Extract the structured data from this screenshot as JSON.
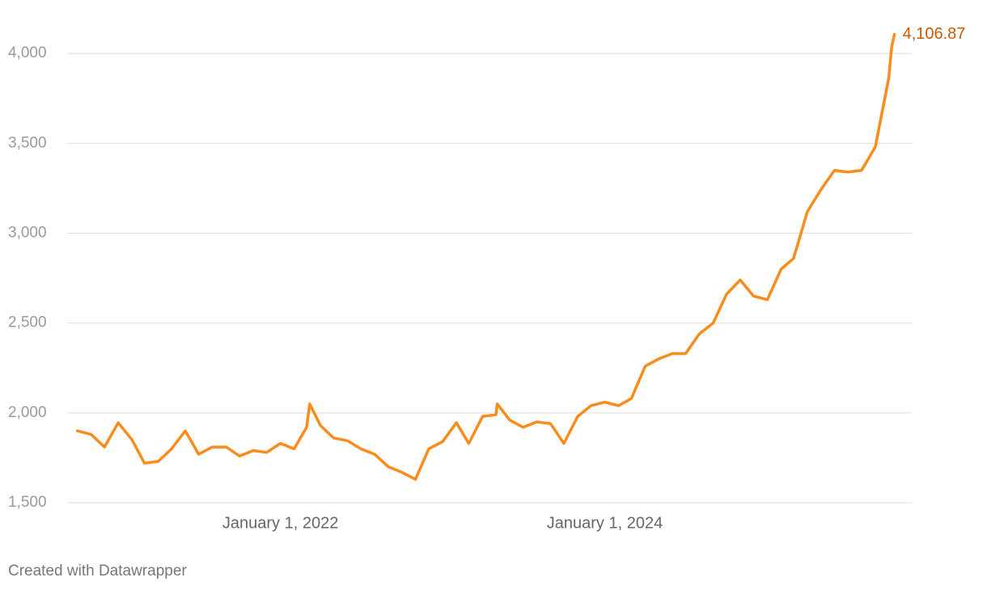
{
  "chart_data": {
    "type": "line",
    "x": [
      "2020-10-01",
      "2020-11-01",
      "2020-12-01",
      "2021-01-01",
      "2021-02-01",
      "2021-03-01",
      "2021-04-01",
      "2021-05-01",
      "2021-06-01",
      "2021-07-01",
      "2021-08-01",
      "2021-09-01",
      "2021-10-01",
      "2021-11-01",
      "2021-12-01",
      "2022-01-01",
      "2022-02-01",
      "2022-03-01",
      "2022-03-08",
      "2022-04-01",
      "2022-05-01",
      "2022-06-01",
      "2022-07-01",
      "2022-08-01",
      "2022-09-01",
      "2022-10-01",
      "2022-11-01",
      "2022-12-01",
      "2023-01-01",
      "2023-02-01",
      "2023-03-01",
      "2023-04-01",
      "2023-05-01",
      "2023-05-04",
      "2023-06-01",
      "2023-07-01",
      "2023-08-01",
      "2023-09-01",
      "2023-10-01",
      "2023-11-01",
      "2023-12-01",
      "2024-01-01",
      "2024-02-01",
      "2024-03-01",
      "2024-04-01",
      "2024-05-01",
      "2024-06-01",
      "2024-07-01",
      "2024-08-01",
      "2024-09-01",
      "2024-10-01",
      "2024-11-01",
      "2024-12-01",
      "2025-01-01",
      "2025-02-01",
      "2025-03-01",
      "2025-04-01",
      "2025-05-01",
      "2025-06-01",
      "2025-07-01",
      "2025-08-01",
      "2025-09-01",
      "2025-10-01",
      "2025-10-08",
      "2025-10-14"
    ],
    "values": [
      1900,
      1880,
      1810,
      1945,
      1850,
      1720,
      1730,
      1800,
      1900,
      1770,
      1810,
      1810,
      1760,
      1790,
      1780,
      1830,
      1800,
      1920,
      2050,
      1930,
      1860,
      1845,
      1800,
      1770,
      1700,
      1670,
      1630,
      1800,
      1840,
      1945,
      1830,
      1980,
      1990,
      2050,
      1960,
      1920,
      1950,
      1940,
      1830,
      1980,
      2040,
      2060,
      2040,
      2080,
      2260,
      2300,
      2330,
      2330,
      2440,
      2500,
      2660,
      2740,
      2650,
      2630,
      2800,
      2860,
      3120,
      3240,
      3350,
      3340,
      3350,
      3480,
      3860,
      4040,
      4106.87
    ],
    "value_labels": [
      null,
      null,
      null,
      null,
      null,
      null,
      null,
      null,
      null,
      null,
      null,
      null,
      null,
      null,
      null,
      null,
      null,
      null,
      null,
      null,
      null,
      null,
      null,
      null,
      null,
      null,
      null,
      null,
      null,
      null,
      null,
      null,
      null,
      null,
      null,
      null,
      null,
      null,
      null,
      null,
      null,
      null,
      null,
      null,
      null,
      null,
      null,
      null,
      null,
      null,
      null,
      null,
      null,
      null,
      null,
      null,
      null,
      null,
      null,
      null,
      null,
      null,
      null,
      null,
      "4,106.87"
    ],
    "color": "#fa8c1e",
    "label_color": "#c85a00",
    "xlim": [
      "2020-09-08",
      "2025-11-22"
    ],
    "xticks": [
      {
        "value": "2022-01-01",
        "label": "January 1, 2022"
      },
      {
        "value": "2024-01-01",
        "label": "January 1, 2024"
      }
    ],
    "ylim": [
      1500,
      4100
    ],
    "yticks": [
      {
        "value": 1500,
        "label": "1,500"
      },
      {
        "value": 2000,
        "label": "2,000"
      },
      {
        "value": 2500,
        "label": "2,500"
      },
      {
        "value": 3000,
        "label": "3,000"
      },
      {
        "value": 3500,
        "label": "3,500"
      },
      {
        "value": 4000,
        "label": "4,000"
      }
    ],
    "grid": true,
    "footer": "Created with Datawrapper"
  }
}
